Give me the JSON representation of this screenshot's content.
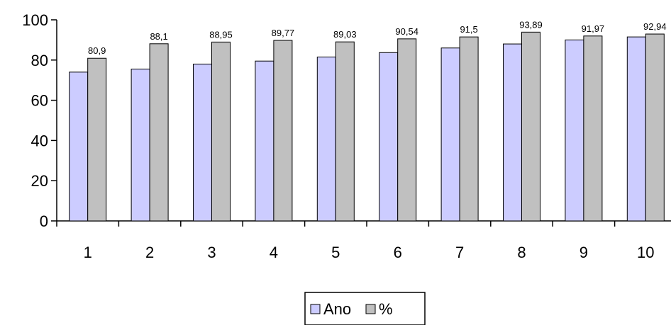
{
  "chart_data": {
    "type": "bar",
    "categories": [
      "1",
      "2",
      "3",
      "4",
      "5",
      "6",
      "7",
      "8",
      "9",
      "10"
    ],
    "series": [
      {
        "name": "Ano",
        "values": [
          74,
          75.5,
          78,
          79.5,
          81.5,
          83.7,
          86,
          88,
          90,
          91.5
        ],
        "color": "#ccccff",
        "show_labels": false
      },
      {
        "name": "%",
        "values": [
          80.9,
          88.1,
          88.95,
          89.77,
          89.03,
          90.54,
          91.5,
          93.89,
          91.97,
          92.94
        ],
        "labels": [
          "80,9",
          "88,1",
          "88,95",
          "89,77",
          "89,03",
          "90,54",
          "91,5",
          "93,89",
          "91,97",
          "92,94"
        ],
        "color": "#c0c0c0",
        "show_labels": true
      }
    ],
    "ylim": [
      0,
      100
    ],
    "yticks": [
      0,
      20,
      40,
      60,
      80,
      100
    ],
    "grid": false,
    "legend": "bottom-center",
    "title": "",
    "xlabel": "",
    "ylabel": ""
  }
}
